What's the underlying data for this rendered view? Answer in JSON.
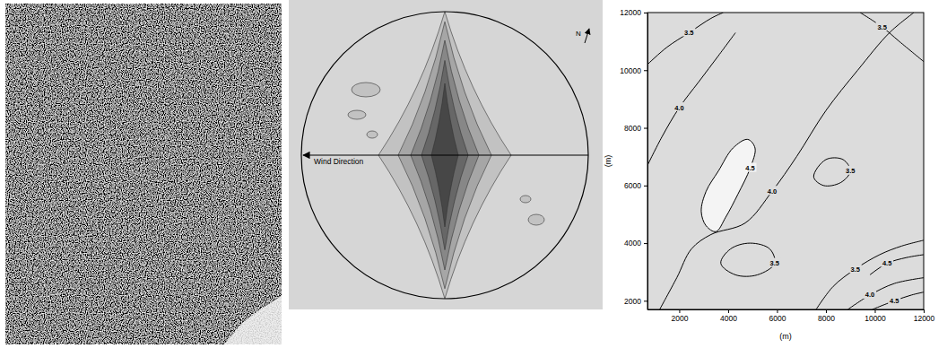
{
  "chart_data": [
    {
      "type": "image"
    },
    {
      "type": "polar_spectrum",
      "annotations": [
        "Wind Direction",
        "N"
      ]
    },
    {
      "type": "contour",
      "xlim": [
        700,
        12000
      ],
      "ylim": [
        1700,
        12000
      ],
      "xticks": [
        2000,
        4000,
        6000,
        8000,
        10000,
        12000
      ],
      "yticks": [
        2000,
        4000,
        6000,
        8000,
        10000,
        12000
      ],
      "xlabel": "(m)",
      "ylabel": "(m)",
      "contours": [
        {
          "level": 3.5,
          "label": "3.5",
          "x": [
            700,
            1500,
            2400,
            3300,
            3800
          ],
          "y": [
            10200,
            10800,
            11300,
            11800,
            12000
          ]
        },
        {
          "level": 4.0,
          "label": "4.0",
          "x": [
            700,
            1300,
            2000,
            2800,
            3600,
            4300
          ],
          "y": [
            6700,
            7700,
            8700,
            9600,
            10500,
            11300
          ]
        },
        {
          "level": 3.5,
          "label": "3.5",
          "x": [
            9400,
            10300,
            11000,
            12000
          ],
          "y": [
            12000,
            11500,
            11000,
            10300
          ]
        },
        {
          "level": 4.5,
          "label": "4.5",
          "x": [
            2900,
            3100,
            3500,
            3900,
            4400,
            4900,
            5100,
            4800,
            4200,
            3600,
            3100,
            2900
          ],
          "y": [
            5100,
            4600,
            4400,
            4900,
            5700,
            6600,
            7300,
            7600,
            7300,
            6500,
            5800,
            5100
          ]
        },
        {
          "level": 4.0,
          "label": "4.0",
          "x": [
            1200,
            1900,
            2500,
            3300,
            4700,
            5800,
            6800,
            8000,
            9300,
            10600,
            11600
          ],
          "y": [
            1700,
            2800,
            3800,
            4300,
            4700,
            5800,
            7000,
            8600,
            10000,
            11300,
            12000
          ]
        },
        {
          "level": 3.5,
          "label": "3.5",
          "x": [
            7500,
            7900,
            8600,
            9000,
            8700,
            8000,
            7500
          ],
          "y": [
            6300,
            6000,
            6100,
            6500,
            6900,
            6900,
            6300
          ]
        },
        {
          "level": 3.5,
          "label": "3.5",
          "x": [
            3700,
            4300,
            5200,
            5900,
            5700,
            4900,
            4100,
            3700
          ],
          "y": [
            3300,
            2900,
            2900,
            3300,
            3800,
            4000,
            3800,
            3300
          ]
        },
        {
          "level": 3.5,
          "label": "3.5",
          "x": [
            7600,
            8300,
            9200,
            10200,
            11100,
            12000
          ],
          "y": [
            1700,
            2500,
            3100,
            3600,
            3900,
            4100
          ]
        },
        {
          "level": 4.5,
          "label": "4.5",
          "x": [
            9800,
            10500,
            11300,
            12000
          ],
          "y": [
            2900,
            3300,
            3500,
            3600
          ]
        },
        {
          "level": 4.0,
          "label": "4.0",
          "x": [
            8900,
            9800,
            10800,
            12000
          ],
          "y": [
            1700,
            2200,
            2600,
            2800
          ]
        },
        {
          "level": 4.5,
          "label": "4.5",
          "x": [
            9900,
            10800,
            11500,
            12000
          ],
          "y": [
            1700,
            2000,
            2200,
            2300
          ]
        }
      ]
    }
  ]
}
